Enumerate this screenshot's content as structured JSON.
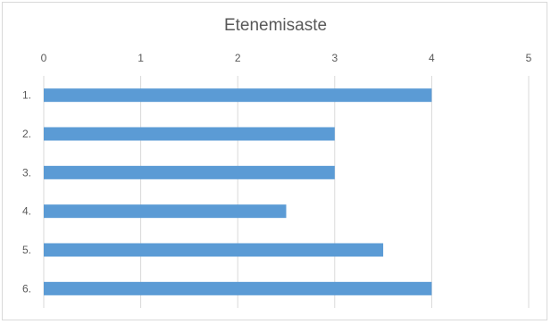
{
  "chart_data": {
    "type": "bar",
    "orientation": "horizontal",
    "title": "Etenemisaste",
    "categories": [
      "1.",
      "2.",
      "3.",
      "4.",
      "5.",
      "6."
    ],
    "values": [
      4,
      3,
      3,
      2.5,
      3.5,
      4
    ],
    "xlim": [
      0,
      5
    ],
    "xticks": [
      "0",
      "1",
      "2",
      "3",
      "4",
      "5"
    ],
    "xaxis_position": "top",
    "grid": true,
    "legend": "none",
    "bar_color": "#5b9bd5",
    "grid_color": "#d9d9d9"
  }
}
